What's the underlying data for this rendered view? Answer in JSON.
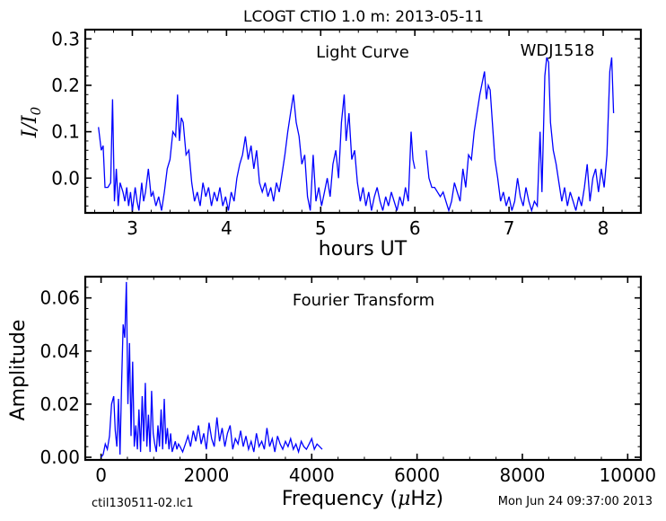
{
  "figure": {
    "title": "LCOGT CTIO 1.0 m:  2013-05-11",
    "footer_left": "ctil130511-02.lc1",
    "footer_right": "Mon Jun 24 09:37:00 2013"
  },
  "chart_data": [
    {
      "type": "line",
      "annotation": "Light Curve",
      "object_label": "WDJ1518",
      "xlabel": "hours UT",
      "ylabel_main": "I",
      "ylabel_slash": "/",
      "ylabel_denominator": "I",
      "ylabel_subscript": "0",
      "xlim": [
        2.5,
        8.4
      ],
      "ylim": [
        -0.075,
        0.32
      ],
      "x_ticks": [
        3,
        4,
        5,
        6,
        7,
        8
      ],
      "x_tick_labels": [
        "3",
        "4",
        "5",
        "6",
        "7",
        "8"
      ],
      "y_ticks": [
        0.0,
        0.1,
        0.2,
        0.3
      ],
      "y_tick_labels": [
        "0.0",
        "0.1",
        "0.2",
        "0.3"
      ],
      "line_color": "#0000ff",
      "segments": [
        [
          [
            2.64,
            0.11
          ],
          [
            2.67,
            0.06
          ],
          [
            2.69,
            0.07
          ],
          [
            2.71,
            -0.02
          ],
          [
            2.74,
            -0.02
          ],
          [
            2.77,
            -0.01
          ],
          [
            2.79,
            0.17
          ],
          [
            2.81,
            -0.05
          ],
          [
            2.83,
            0.02
          ],
          [
            2.85,
            -0.06
          ],
          [
            2.87,
            -0.01
          ],
          [
            2.9,
            -0.03
          ],
          [
            2.92,
            -0.05
          ],
          [
            2.94,
            -0.02
          ],
          [
            2.96,
            -0.06
          ],
          [
            2.98,
            -0.03
          ],
          [
            3.0,
            -0.07
          ],
          [
            3.03,
            -0.02
          ],
          [
            3.05,
            -0.05
          ],
          [
            3.07,
            -0.07
          ],
          [
            3.1,
            -0.01
          ],
          [
            3.12,
            -0.05
          ],
          [
            3.14,
            -0.03
          ],
          [
            3.17,
            0.02
          ],
          [
            3.2,
            -0.04
          ],
          [
            3.22,
            -0.03
          ],
          [
            3.25,
            -0.06
          ],
          [
            3.28,
            -0.04
          ],
          [
            3.31,
            -0.07
          ],
          [
            3.34,
            -0.03
          ],
          [
            3.37,
            0.02
          ],
          [
            3.4,
            0.04
          ],
          [
            3.43,
            0.1
          ],
          [
            3.46,
            0.09
          ],
          [
            3.48,
            0.18
          ],
          [
            3.5,
            0.08
          ],
          [
            3.52,
            0.13
          ],
          [
            3.54,
            0.12
          ],
          [
            3.57,
            0.05
          ],
          [
            3.6,
            0.06
          ],
          [
            3.63,
            -0.01
          ],
          [
            3.66,
            -0.05
          ],
          [
            3.69,
            -0.03
          ],
          [
            3.72,
            -0.06
          ],
          [
            3.75,
            -0.01
          ],
          [
            3.78,
            -0.04
          ],
          [
            3.81,
            -0.02
          ],
          [
            3.84,
            -0.06
          ],
          [
            3.87,
            -0.03
          ],
          [
            3.9,
            -0.05
          ],
          [
            3.93,
            -0.02
          ],
          [
            3.96,
            -0.06
          ],
          [
            3.99,
            -0.04
          ],
          [
            4.02,
            -0.07
          ],
          [
            4.05,
            -0.03
          ],
          [
            4.08,
            -0.05
          ],
          [
            4.11,
            0.0
          ],
          [
            4.14,
            0.03
          ],
          [
            4.17,
            0.05
          ],
          [
            4.2,
            0.09
          ],
          [
            4.23,
            0.04
          ],
          [
            4.26,
            0.07
          ],
          [
            4.29,
            0.02
          ],
          [
            4.32,
            0.06
          ],
          [
            4.35,
            -0.01
          ],
          [
            4.38,
            -0.03
          ],
          [
            4.41,
            -0.01
          ],
          [
            4.44,
            -0.04
          ],
          [
            4.47,
            -0.02
          ],
          [
            4.5,
            -0.05
          ],
          [
            4.53,
            -0.01
          ],
          [
            4.56,
            -0.03
          ],
          [
            4.59,
            0.01
          ],
          [
            4.62,
            0.05
          ],
          [
            4.65,
            0.1
          ],
          [
            4.68,
            0.14
          ],
          [
            4.71,
            0.18
          ],
          [
            4.74,
            0.12
          ],
          [
            4.77,
            0.09
          ],
          [
            4.8,
            0.03
          ],
          [
            4.83,
            0.05
          ],
          [
            4.86,
            -0.04
          ],
          [
            4.89,
            -0.07
          ],
          [
            4.92,
            0.05
          ],
          [
            4.95,
            -0.05
          ],
          [
            4.98,
            -0.02
          ],
          [
            5.01,
            -0.06
          ],
          [
            5.04,
            -0.03
          ],
          [
            5.07,
            0.0
          ],
          [
            5.1,
            -0.04
          ],
          [
            5.13,
            0.03
          ],
          [
            5.16,
            0.06
          ],
          [
            5.19,
            0.0
          ],
          [
            5.22,
            0.12
          ],
          [
            5.25,
            0.18
          ],
          [
            5.27,
            0.08
          ],
          [
            5.3,
            0.14
          ],
          [
            5.33,
            0.04
          ],
          [
            5.36,
            0.06
          ],
          [
            5.39,
            -0.01
          ],
          [
            5.42,
            -0.05
          ],
          [
            5.45,
            -0.02
          ],
          [
            5.48,
            -0.06
          ],
          [
            5.51,
            -0.03
          ],
          [
            5.54,
            -0.07
          ],
          [
            5.57,
            -0.04
          ],
          [
            5.6,
            -0.02
          ],
          [
            5.63,
            -0.05
          ],
          [
            5.66,
            -0.07
          ],
          [
            5.69,
            -0.04
          ],
          [
            5.72,
            -0.06
          ],
          [
            5.75,
            -0.03
          ],
          [
            5.78,
            -0.05
          ],
          [
            5.81,
            -0.07
          ],
          [
            5.84,
            -0.04
          ],
          [
            5.87,
            -0.06
          ],
          [
            5.9,
            -0.02
          ],
          [
            5.93,
            -0.05
          ],
          [
            5.96,
            0.1
          ],
          [
            5.98,
            0.04
          ],
          [
            6.0,
            0.02
          ]
        ],
        [
          [
            6.12,
            0.06
          ],
          [
            6.15,
            0.0
          ],
          [
            6.18,
            -0.02
          ],
          [
            6.21,
            -0.02
          ],
          [
            6.24,
            -0.03
          ],
          [
            6.27,
            -0.04
          ],
          [
            6.3,
            -0.03
          ],
          [
            6.33,
            -0.05
          ],
          [
            6.36,
            -0.07
          ],
          [
            6.39,
            -0.05
          ],
          [
            6.42,
            -0.01
          ],
          [
            6.45,
            -0.03
          ],
          [
            6.48,
            -0.05
          ],
          [
            6.51,
            0.02
          ],
          [
            6.54,
            -0.02
          ],
          [
            6.57,
            0.05
          ],
          [
            6.6,
            0.04
          ],
          [
            6.63,
            0.1
          ],
          [
            6.66,
            0.14
          ],
          [
            6.69,
            0.18
          ],
          [
            6.72,
            0.21
          ],
          [
            6.74,
            0.23
          ],
          [
            6.76,
            0.17
          ],
          [
            6.78,
            0.2
          ],
          [
            6.8,
            0.19
          ],
          [
            6.82,
            0.13
          ],
          [
            6.85,
            0.04
          ],
          [
            6.88,
            0.0
          ],
          [
            6.91,
            -0.05
          ],
          [
            6.94,
            -0.03
          ],
          [
            6.97,
            -0.06
          ],
          [
            7.0,
            -0.04
          ],
          [
            7.03,
            -0.07
          ],
          [
            7.06,
            -0.05
          ],
          [
            7.09,
            0.0
          ],
          [
            7.12,
            -0.04
          ],
          [
            7.15,
            -0.06
          ],
          [
            7.18,
            -0.02
          ],
          [
            7.21,
            -0.05
          ],
          [
            7.24,
            -0.07
          ],
          [
            7.27,
            -0.05
          ],
          [
            7.3,
            -0.06
          ],
          [
            7.33,
            0.1
          ],
          [
            7.35,
            -0.03
          ],
          [
            7.38,
            0.22
          ],
          [
            7.4,
            0.26
          ],
          [
            7.42,
            0.25
          ],
          [
            7.44,
            0.12
          ],
          [
            7.47,
            0.06
          ],
          [
            7.5,
            0.03
          ],
          [
            7.53,
            -0.01
          ],
          [
            7.56,
            -0.05
          ],
          [
            7.59,
            -0.02
          ],
          [
            7.62,
            -0.06
          ],
          [
            7.65,
            -0.03
          ],
          [
            7.68,
            -0.05
          ],
          [
            7.71,
            -0.07
          ],
          [
            7.74,
            -0.04
          ],
          [
            7.77,
            -0.06
          ],
          [
            7.8,
            -0.02
          ],
          [
            7.83,
            0.03
          ],
          [
            7.86,
            -0.05
          ],
          [
            7.89,
            0.0
          ],
          [
            7.92,
            0.02
          ],
          [
            7.95,
            -0.03
          ],
          [
            7.98,
            0.02
          ],
          [
            8.01,
            -0.02
          ],
          [
            8.04,
            0.05
          ],
          [
            8.07,
            0.23
          ],
          [
            8.09,
            0.26
          ],
          [
            8.11,
            0.14
          ]
        ]
      ]
    },
    {
      "type": "line",
      "annotation": "Fourier Transform",
      "xlabel_prefix": "Frequency (",
      "xlabel_symbol": "μ",
      "xlabel_suffix": "Hz)",
      "ylabel": "Amplitude",
      "xlim": [
        -300,
        10250
      ],
      "ylim": [
        -0.001,
        0.068
      ],
      "x_ticks": [
        0,
        2000,
        4000,
        6000,
        8000,
        10000
      ],
      "x_tick_labels": [
        "0",
        "2000",
        "4000",
        "6000",
        "8000",
        "10000"
      ],
      "y_ticks": [
        0.0,
        0.02,
        0.04,
        0.06
      ],
      "y_tick_labels": [
        "0.00",
        "0.02",
        "0.04",
        "0.06"
      ],
      "line_color": "#0000ff",
      "x": [
        0,
        40,
        80,
        120,
        160,
        200,
        240,
        270,
        300,
        330,
        360,
        390,
        420,
        450,
        480,
        510,
        540,
        570,
        600,
        630,
        660,
        690,
        720,
        750,
        780,
        810,
        840,
        870,
        900,
        930,
        960,
        990,
        1020,
        1050,
        1080,
        1110,
        1140,
        1170,
        1200,
        1230,
        1260,
        1290,
        1320,
        1350,
        1380,
        1410,
        1440,
        1470,
        1500,
        1550,
        1600,
        1650,
        1700,
        1750,
        1800,
        1850,
        1900,
        1950,
        2000,
        2050,
        2100,
        2150,
        2200,
        2250,
        2300,
        2350,
        2400,
        2450,
        2500,
        2550,
        2600,
        2650,
        2700,
        2750,
        2800,
        2850,
        2900,
        2950,
        3000,
        3050,
        3100,
        3150,
        3200,
        3250,
        3300,
        3350,
        3400,
        3450,
        3500,
        3550,
        3600,
        3650,
        3700,
        3750,
        3800,
        3850,
        3900,
        3950,
        4000,
        4050,
        4100,
        4150,
        4200
      ],
      "y": [
        0.0,
        0.001,
        0.005,
        0.003,
        0.008,
        0.02,
        0.023,
        0.01,
        0.004,
        0.022,
        0.001,
        0.028,
        0.05,
        0.045,
        0.066,
        0.02,
        0.043,
        0.008,
        0.036,
        0.004,
        0.012,
        0.003,
        0.018,
        0.002,
        0.023,
        0.006,
        0.028,
        0.004,
        0.016,
        0.002,
        0.025,
        0.009,
        0.005,
        0.002,
        0.012,
        0.004,
        0.018,
        0.003,
        0.022,
        0.005,
        0.011,
        0.003,
        0.009,
        0.002,
        0.004,
        0.006,
        0.003,
        0.005,
        0.004,
        0.002,
        0.005,
        0.008,
        0.004,
        0.01,
        0.006,
        0.012,
        0.005,
        0.009,
        0.003,
        0.013,
        0.007,
        0.004,
        0.015,
        0.006,
        0.011,
        0.004,
        0.009,
        0.012,
        0.003,
        0.007,
        0.005,
        0.01,
        0.004,
        0.008,
        0.003,
        0.006,
        0.002,
        0.009,
        0.004,
        0.006,
        0.003,
        0.011,
        0.004,
        0.007,
        0.002,
        0.008,
        0.005,
        0.003,
        0.006,
        0.004,
        0.007,
        0.003,
        0.005,
        0.002,
        0.006,
        0.004,
        0.003,
        0.005,
        0.007,
        0.003,
        0.005,
        0.004,
        0.003
      ]
    }
  ]
}
